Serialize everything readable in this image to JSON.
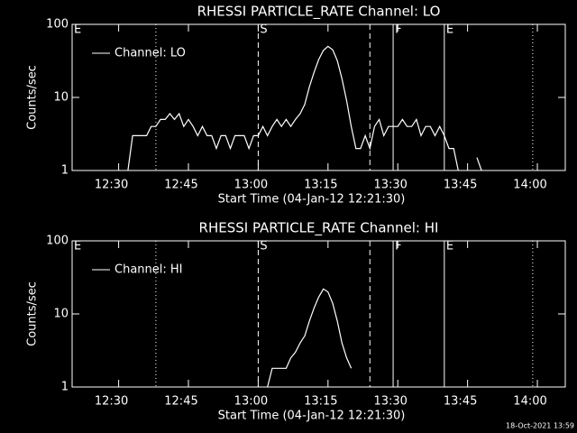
{
  "chart_data": [
    {
      "type": "line",
      "title": "RHESSI PARTICLE_RATE Channel: LO",
      "x_label": "Start Time (04-Jan-12 12:21:30)",
      "y_label": "Counts/sec",
      "log_y": true,
      "ylim": [
        1,
        100
      ],
      "yticks": [
        1,
        10,
        100
      ],
      "xlim": [
        "12:20",
        "14:06"
      ],
      "xticks": [
        "12:30",
        "12:45",
        "13:00",
        "13:15",
        "13:30",
        "13:45",
        "14:00"
      ],
      "legend": "upper left",
      "markers": [
        {
          "x": "12:20",
          "label": "E",
          "style": "solid"
        },
        {
          "x": "12:38",
          "style": "dotted"
        },
        {
          "x": "13:00",
          "label": "S",
          "style": "dashed"
        },
        {
          "x": "13:24",
          "style": "dashed"
        },
        {
          "x": "13:29",
          "label": "F",
          "style": "solid"
        },
        {
          "x": "13:40",
          "label": "E",
          "style": "solid"
        },
        {
          "x": "13:59",
          "style": "dotted"
        }
      ],
      "x": [
        "12:32",
        "12:33",
        "12:34",
        "12:35",
        "12:36",
        "12:37",
        "12:38",
        "12:39",
        "12:40",
        "12:41",
        "12:42",
        "12:43",
        "12:44",
        "12:45",
        "12:46",
        "12:47",
        "12:48",
        "12:49",
        "12:50",
        "12:51",
        "12:52",
        "12:53",
        "12:54",
        "12:55",
        "12:56",
        "12:57",
        "12:58",
        "12:59",
        "13:00",
        "13:01",
        "13:02",
        "13:03",
        "13:04",
        "13:05",
        "13:06",
        "13:07",
        "13:08",
        "13:09",
        "13:10",
        "13:11",
        "13:12",
        "13:13",
        "13:14",
        "13:15",
        "13:16",
        "13:17",
        "13:18",
        "13:19",
        "13:20",
        "13:21",
        "13:22",
        "13:23",
        "13:24",
        "13:25",
        "13:26",
        "13:27",
        "13:28",
        "13:29",
        "13:30",
        "13:31",
        "13:32",
        "13:33",
        "13:34",
        "13:35",
        "13:36",
        "13:37",
        "13:38",
        "13:39",
        "13:40",
        "13:41",
        "13:42",
        "13:43",
        "13:44",
        "13:47",
        "13:48"
      ],
      "series": [
        {
          "name": "Channel: LO",
          "color": "#ffffff",
          "values": [
            1,
            3,
            3,
            3,
            3,
            4,
            4,
            5,
            5,
            6,
            5,
            6,
            4,
            5,
            4,
            3,
            4,
            3,
            3,
            2,
            3,
            3,
            2,
            3,
            3,
            3,
            2,
            3,
            3,
            4,
            3,
            4,
            5,
            4,
            5,
            4,
            5,
            6,
            8,
            14,
            22,
            33,
            44,
            50,
            45,
            32,
            18,
            9,
            4,
            2,
            2,
            3,
            2,
            4,
            5,
            3,
            4,
            4,
            4,
            5,
            4,
            4,
            5,
            3,
            4,
            4,
            3,
            4,
            3,
            2,
            2,
            1,
            null,
            1.5,
            1
          ]
        }
      ]
    },
    {
      "type": "line",
      "title": "RHESSI PARTICLE_RATE Channel: HI",
      "x_label": "Start Time (04-Jan-12 12:21:30)",
      "y_label": "Counts/sec",
      "log_y": true,
      "ylim": [
        1,
        100
      ],
      "yticks": [
        1,
        10,
        100
      ],
      "xlim": [
        "12:20",
        "14:06"
      ],
      "xticks": [
        "12:30",
        "12:45",
        "13:00",
        "13:15",
        "13:30",
        "13:45",
        "14:00"
      ],
      "legend": "upper left",
      "markers": [
        {
          "x": "12:20",
          "label": "E",
          "style": "solid"
        },
        {
          "x": "12:38",
          "style": "dotted"
        },
        {
          "x": "13:00",
          "label": "S",
          "style": "dashed"
        },
        {
          "x": "13:24",
          "style": "dashed"
        },
        {
          "x": "13:29",
          "label": "F",
          "style": "solid"
        },
        {
          "x": "13:40",
          "label": "E",
          "style": "solid"
        },
        {
          "x": "13:59",
          "style": "dotted"
        }
      ],
      "x": [
        "13:02",
        "13:03",
        "13:04",
        "13:05",
        "13:06",
        "13:07",
        "13:08",
        "13:09",
        "13:10",
        "13:11",
        "13:12",
        "13:13",
        "13:14",
        "13:15",
        "13:16",
        "13:17",
        "13:18",
        "13:19",
        "13:20"
      ],
      "series": [
        {
          "name": "Channel: HI",
          "color": "#ffffff",
          "values": [
            1,
            1.8,
            1.8,
            1.8,
            1.8,
            2.5,
            3,
            4,
            5,
            8,
            12,
            17,
            22,
            20,
            14,
            8,
            4,
            2.5,
            1.8
          ]
        }
      ]
    }
  ],
  "footer": "18-Oct-2021 13:59"
}
